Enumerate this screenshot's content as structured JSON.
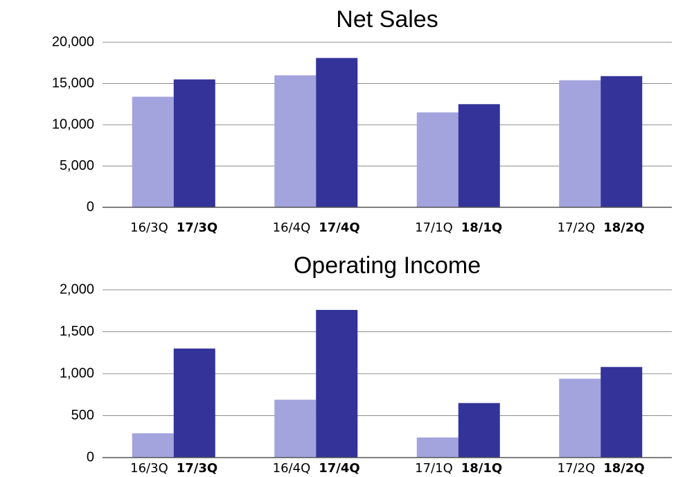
{
  "chart_data": [
    {
      "type": "bar",
      "title": "Net Sales",
      "categories": [
        [
          "16/3Q",
          "17/3Q"
        ],
        [
          "16/4Q",
          "17/4Q"
        ],
        [
          "17/1Q",
          "18/1Q"
        ],
        [
          "17/2Q",
          "18/2Q"
        ]
      ],
      "series": [
        {
          "color": "#a3a3de",
          "values": [
            13400,
            16000,
            11500,
            15400
          ]
        },
        {
          "color": "#333399",
          "values": [
            15500,
            18100,
            12500,
            15900
          ]
        }
      ],
      "ylim": [
        0,
        20000
      ],
      "yticks": [
        0,
        {
          "value": 5000,
          "label": "5,000"
        },
        {
          "value": 10000,
          "label": "10,000"
        },
        {
          "value": 15000,
          "label": "15,000"
        },
        {
          "value": 20000,
          "label": "20,000"
        }
      ],
      "grid": true
    },
    {
      "type": "bar",
      "title": "Operating Income",
      "categories": [
        [
          "16/3Q",
          "17/3Q"
        ],
        [
          "16/4Q",
          "17/4Q"
        ],
        [
          "17/1Q",
          "18/1Q"
        ],
        [
          "17/2Q",
          "18/2Q"
        ]
      ],
      "series": [
        {
          "color": "#a3a3de",
          "values": [
            290,
            690,
            240,
            940
          ]
        },
        {
          "color": "#333399",
          "values": [
            1300,
            1760,
            650,
            1080
          ]
        }
      ],
      "ylim": [
        0,
        2000
      ],
      "yticks": [
        0,
        500,
        {
          "value": 1000,
          "label": "1,000"
        },
        {
          "value": 1500,
          "label": "1,500"
        },
        {
          "value": 2000,
          "label": "2,000"
        }
      ],
      "grid": true
    }
  ]
}
